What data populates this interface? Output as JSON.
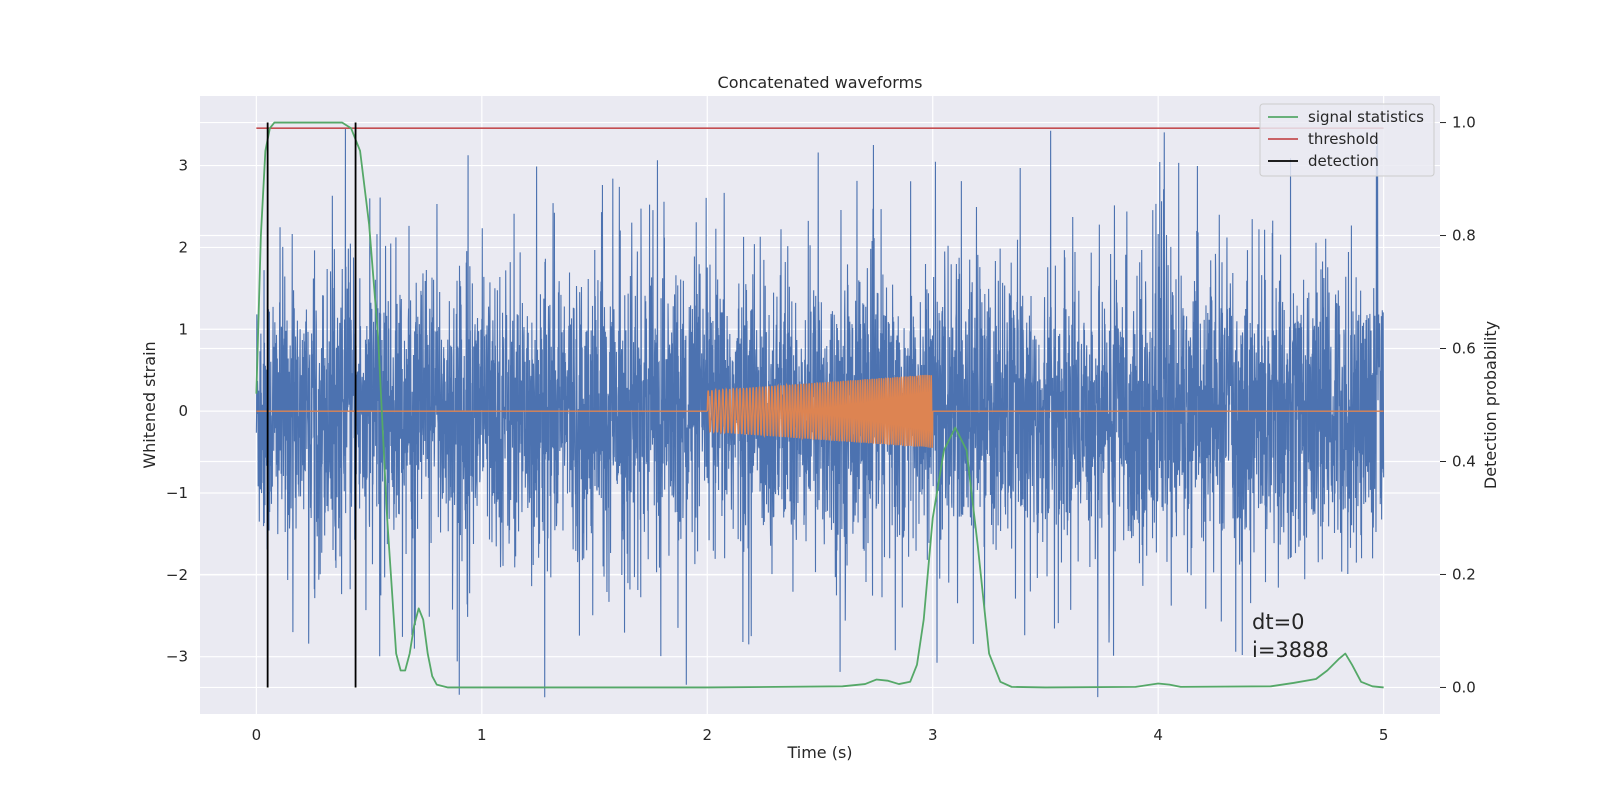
{
  "chart_data": {
    "type": "line",
    "title": "Concatenated waveforms",
    "xlabel": "Time (s)",
    "ylabel": "Whitened strain",
    "y2label": "Detection probability",
    "xlim": [
      -0.25,
      5.25
    ],
    "ylim": [
      -3.7,
      3.85
    ],
    "y2lim": [
      -0.047,
      1.047
    ],
    "xticks": [
      0,
      1,
      2,
      3,
      4,
      5
    ],
    "yticks": [
      -3,
      -2,
      -1,
      0,
      1,
      2,
      3
    ],
    "y2ticks": [
      0.0,
      0.2,
      0.4,
      0.6,
      0.8,
      1.0
    ],
    "xtick_labels": [
      "0",
      "1",
      "2",
      "3",
      "4",
      "5"
    ],
    "ytick_labels": [
      "−3",
      "−2",
      "−1",
      "0",
      "1",
      "2",
      "3"
    ],
    "y2tick_labels": [
      "0.0",
      "0.2",
      "0.4",
      "0.6",
      "0.8",
      "1.0"
    ],
    "grid": true,
    "background": "#eaeaf2",
    "legend_position": "top-right",
    "series": [
      {
        "name": "",
        "axis": "left",
        "kind": "noise",
        "color": "#4c72b0",
        "x_range": [
          0,
          5
        ],
        "envelope": 1.6,
        "peak_abs": 3.5
      },
      {
        "name": "",
        "axis": "left",
        "kind": "chirp",
        "color": "#dd8452",
        "x_range": [
          2,
          3
        ],
        "amplitude_start": 0.25,
        "amplitude_end": 0.45
      },
      {
        "name": "signal statistics",
        "axis": "right",
        "color": "#55a868",
        "x": [
          0.0,
          0.02,
          0.04,
          0.06,
          0.08,
          0.12,
          0.2,
          0.3,
          0.38,
          0.42,
          0.46,
          0.5,
          0.54,
          0.58,
          0.62,
          0.64,
          0.66,
          0.68,
          0.7,
          0.72,
          0.74,
          0.76,
          0.78,
          0.8,
          0.85,
          1.0,
          2.0,
          2.6,
          2.7,
          2.75,
          2.8,
          2.85,
          2.9,
          2.93,
          2.96,
          3.0,
          3.05,
          3.1,
          3.15,
          3.2,
          3.25,
          3.3,
          3.35,
          3.5,
          3.9,
          4.0,
          4.05,
          4.1,
          4.5,
          4.6,
          4.7,
          4.75,
          4.8,
          4.83,
          4.86,
          4.9,
          4.95,
          5.0
        ],
        "y": [
          0.52,
          0.8,
          0.95,
          0.99,
          1.0,
          1.0,
          1.0,
          1.0,
          1.0,
          0.99,
          0.95,
          0.82,
          0.62,
          0.3,
          0.06,
          0.03,
          0.03,
          0.06,
          0.11,
          0.14,
          0.12,
          0.06,
          0.02,
          0.005,
          0.0,
          0.0,
          0.0,
          0.002,
          0.006,
          0.014,
          0.012,
          0.006,
          0.01,
          0.04,
          0.12,
          0.3,
          0.42,
          0.46,
          0.42,
          0.25,
          0.06,
          0.01,
          0.001,
          0.0,
          0.001,
          0.007,
          0.005,
          0.001,
          0.002,
          0.008,
          0.015,
          0.03,
          0.05,
          0.06,
          0.04,
          0.01,
          0.002,
          0.0
        ]
      },
      {
        "name": "threshold",
        "axis": "right",
        "color": "#c44e52",
        "x": [
          0,
          5
        ],
        "y": [
          0.99,
          0.99
        ]
      }
    ],
    "detections": {
      "name": "detection",
      "color": "#000000",
      "x": [
        0.05,
        0.44
      ],
      "y_range": [
        0.0,
        1.0
      ]
    },
    "annotation": {
      "line1": "dt=0",
      "line2": "i=3888",
      "x": 4.5,
      "y": -2.6
    }
  }
}
